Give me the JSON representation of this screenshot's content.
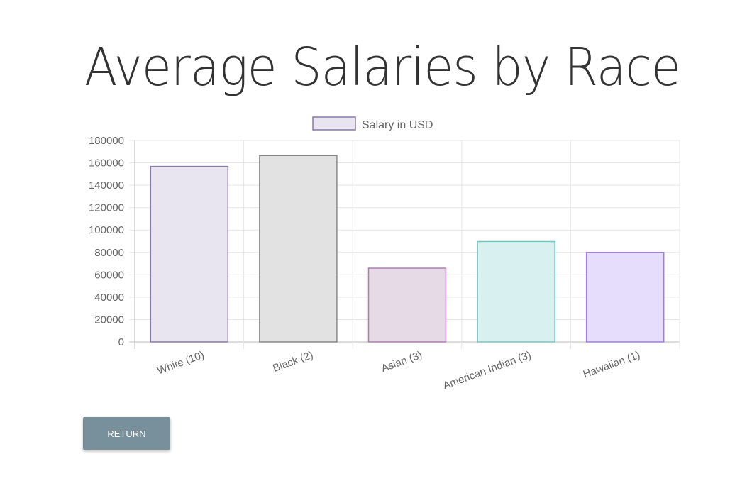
{
  "page": {
    "title": "Average Salaries by Race",
    "return_label": "RETURN"
  },
  "chart_data": {
    "type": "bar",
    "title": "",
    "categories": [
      "White (10)",
      "Black (2)",
      "Asian (3)",
      "American Indian (3)",
      "Hawaiian (1)"
    ],
    "series": [
      {
        "name": "Salary in USD",
        "values": [
          156800,
          166500,
          65900,
          89700,
          80000
        ]
      }
    ],
    "ylim": [
      0,
      180000
    ],
    "yticks": [
      0,
      20000,
      40000,
      60000,
      80000,
      100000,
      120000,
      140000,
      160000,
      180000
    ],
    "grid": true,
    "legend": "top",
    "colors": {
      "fill": [
        "#e8e4f0",
        "#e2e2e2",
        "#e6dae6",
        "#d8f0f0",
        "#e6dcfc"
      ],
      "border": [
        "#8a7aa6",
        "#888888",
        "#b07ab4",
        "#70c8c4",
        "#a07af0"
      ],
      "legend_fill": "#e8e4f0",
      "legend_border": "#8a7aa6"
    }
  }
}
